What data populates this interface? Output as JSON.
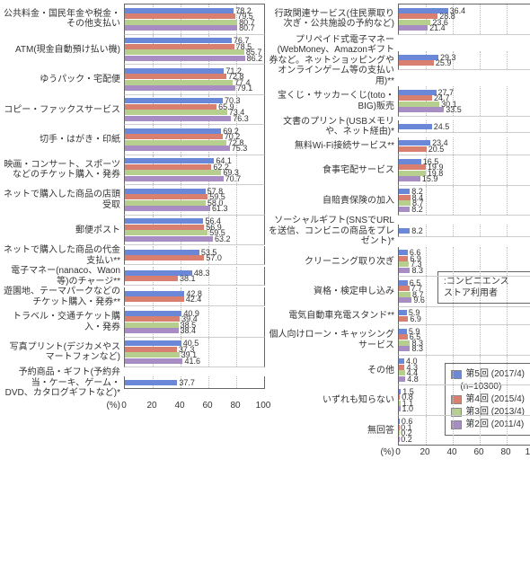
{
  "colors": {
    "s5": "#6b88d8",
    "s4": "#d97f70",
    "s3": "#b7cf8e",
    "s2": "#a88cc4"
  },
  "axis": {
    "unit": "(%)",
    "min": 0,
    "max": 100,
    "step": 20
  },
  "legend_note": {
    "line1": ":コンビニエンス",
    "line2": "ストア利用者"
  },
  "legend_series": [
    {
      "key": "s5",
      "label": "第5回 (2017/4)",
      "sub": "(n=10300)"
    },
    {
      "key": "s4",
      "label": "第4回 (2015/4)"
    },
    {
      "key": "s3",
      "label": "第3回 (2013/4)"
    },
    {
      "key": "s2",
      "label": "第2回 (2011/4)"
    }
  ],
  "left_label_width": 130,
  "left_plot_width": 155,
  "right_label_width": 140,
  "right_plot_width": 150,
  "left": [
    {
      "label": "公共料金・国民年金や税金・その他支払い",
      "v": [
        78.2,
        79.5,
        80.7,
        80.7
      ]
    },
    {
      "label": "ATM(現金自動預け払い機)",
      "v": [
        76.7,
        78.5,
        85.7,
        86.2
      ]
    },
    {
      "label": "ゆうパック・宅配便",
      "v": [
        71.2,
        72.8,
        77.4,
        79.1
      ]
    },
    {
      "label": "コピー・ファックスサービス",
      "v": [
        70.3,
        65.9,
        73.4,
        76.3
      ]
    },
    {
      "label": "切手・はがき・印紙",
      "v": [
        69.2,
        70.2,
        72.8,
        75.3
      ]
    },
    {
      "label": "映画・コンサート、スポーツなどのチケット購入・発券",
      "v": [
        64.1,
        62.2,
        69.3,
        70.7
      ]
    },
    {
      "label": "ネットで購入した商品の店頭受取",
      "v": [
        57.8,
        59.5,
        58.0,
        61.3
      ]
    },
    {
      "label": "郵便ポスト",
      "v": [
        56.4,
        56.9,
        59.5,
        63.2
      ]
    },
    {
      "label": "ネットで購入した商品の代金支払い**",
      "v": [
        53.5,
        57.0
      ]
    },
    {
      "label": "電子マネー(nanaco、Waon等)のチャージ**",
      "v": [
        48.3,
        38.1
      ]
    },
    {
      "label": "遊園地、テーマパークなどのチケット購入・発券**",
      "v": [
        42.8,
        42.4
      ]
    },
    {
      "label": "トラベル・交通チケット購入・発券",
      "v": [
        40.9,
        39.4,
        38.5,
        38.4
      ]
    },
    {
      "label": "写真プリント(デジカメやスマートフォンなど)",
      "v": [
        40.5,
        37.3,
        39.1,
        41.6
      ]
    },
    {
      "label": "予約商品・ギフト(予約弁当・ケーキ、ゲーム・DVD、カタログギフトなど)*",
      "v": [
        37.7
      ]
    }
  ],
  "right": [
    {
      "label": "行政関連サービス(住民票取り次ぎ・公共施設の予約など)",
      "v": [
        36.4,
        28.8,
        23.6,
        21.4
      ]
    },
    {
      "label": "プリペイド式電子マネー(WebMoney、Amazonギフト券など。ネットショッピングやオンラインゲーム等の支払い用)**",
      "v": [
        29.3,
        25.9
      ]
    },
    {
      "label": "宝くじ・サッカーくじ(toto・BIG)販売",
      "v": [
        27.7,
        24.7,
        30.1,
        33.5
      ]
    },
    {
      "label": "文書のプリント(USBメモリや、ネット経由)*",
      "v": [
        24.5
      ]
    },
    {
      "label": "無料Wi-Fi接続サービス**",
      "v": [
        23.4,
        20.5
      ]
    },
    {
      "label": "食事宅配サービス",
      "v": [
        16.5,
        19.9,
        19.8,
        15.9
      ]
    },
    {
      "label": "自賠責保険の加入",
      "v": [
        8.2,
        8.4,
        8.7,
        8.2
      ]
    },
    {
      "label": "ソーシャルギフト(SNSでURLを送信、コンビニの商品をプレゼント)*",
      "v": [
        8.2
      ]
    },
    {
      "label": "クリーニング取り次ぎ",
      "v": [
        6.6,
        6.9,
        7.3,
        8.3
      ]
    },
    {
      "label": "資格・検定申し込み",
      "v": [
        6.5,
        7.7,
        8.7,
        9.6
      ]
    },
    {
      "label": "電気自動車充電スタンド**",
      "v": [
        5.9,
        6.9
      ]
    },
    {
      "label": "個人向けローン・キャッシングサービス",
      "v": [
        5.9,
        6.5,
        8.3,
        8.3
      ]
    },
    {
      "label": "その他",
      "v": [
        4.0,
        4.3,
        4.4,
        4.8
      ]
    },
    {
      "label": "いずれも知らない",
      "v": [
        1.5,
        0.8,
        1.1,
        1.0
      ]
    },
    {
      "label": "無回答",
      "v": [
        0.6,
        0.1,
        0.2,
        0.2
      ]
    }
  ]
}
